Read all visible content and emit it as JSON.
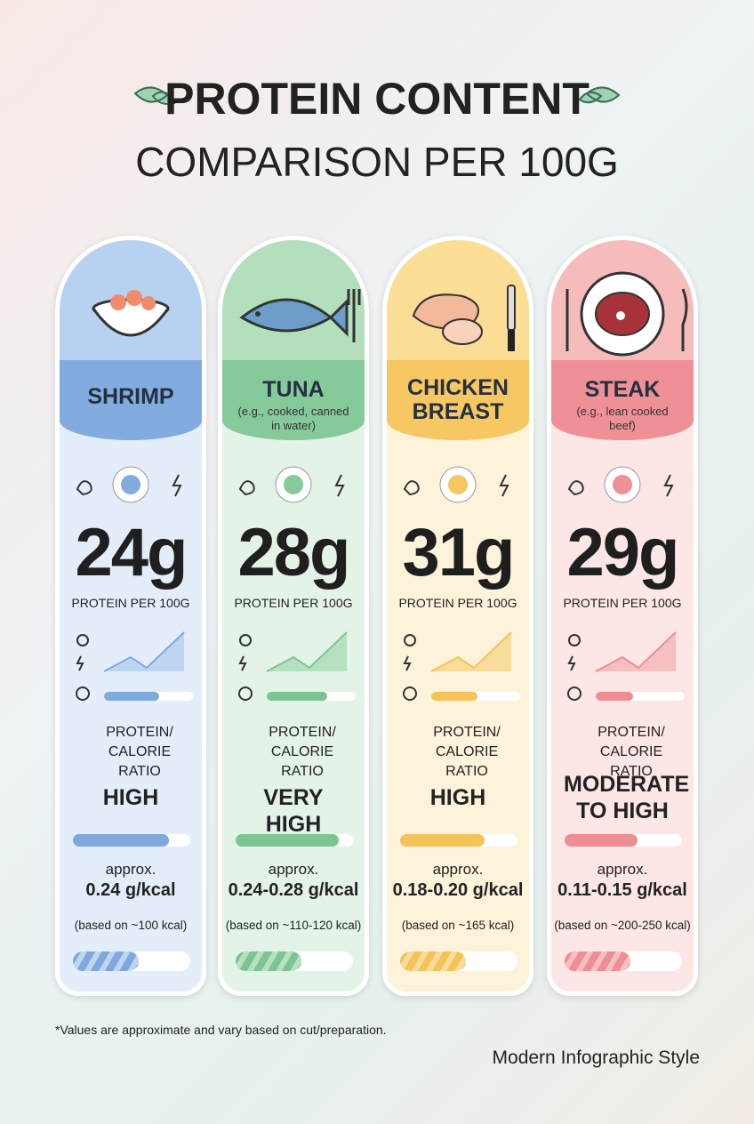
{
  "header": {
    "title": "PROTEIN CONTENT",
    "subtitle": "COMPARISON PER 100G"
  },
  "cards": [
    {
      "name": "SHRIMP",
      "protein": "24g",
      "protein_label": "PROTEIN PER 100G",
      "ratio_label": "PROTEIN/ CALORIE RATIO",
      "rating": "HIGH",
      "approx": "approx.",
      "ratio": "0.24 g/kcal",
      "basis": "(based on ~100 kcal)"
    },
    {
      "name": "TUNA",
      "note": "(e.g., cooked, canned in water)",
      "protein": "28g",
      "protein_label": "PROTEIN PER 100G",
      "ratio_label": "PROTEIN/ CALORIE RATIO",
      "rating": "VERY HIGH",
      "approx": "approx.",
      "ratio": "0.24-0.28 g/kcal",
      "basis": "(based on ~110-120 kcal)"
    },
    {
      "name": "CHICKEN BREAST",
      "protein": "31g",
      "protein_label": "PROTEIN PER 100G",
      "ratio_label": "PROTEIN/ CALORIE RATIO",
      "rating": "HIGH",
      "approx": "approx.",
      "ratio": "0.18-0.20 g/kcal",
      "basis": "(based on ~165 kcal)"
    },
    {
      "name": "STEAK",
      "note": "(e.g., lean cooked beef)",
      "protein": "29g",
      "protein_label": "PROTEIN PER 100G",
      "ratio_label": "PROTEIN/ CALORIE RATIO",
      "rating": "MODERATE TO HIGH",
      "approx": "approx.",
      "ratio": "0.11-0.15 g/kcal",
      "basis": "(based on ~200-250 kcal)"
    }
  ],
  "footer": {
    "footnote": "*Values are approximate and vary based on cut/preparation.",
    "style": "Modern Infographic Style"
  }
}
